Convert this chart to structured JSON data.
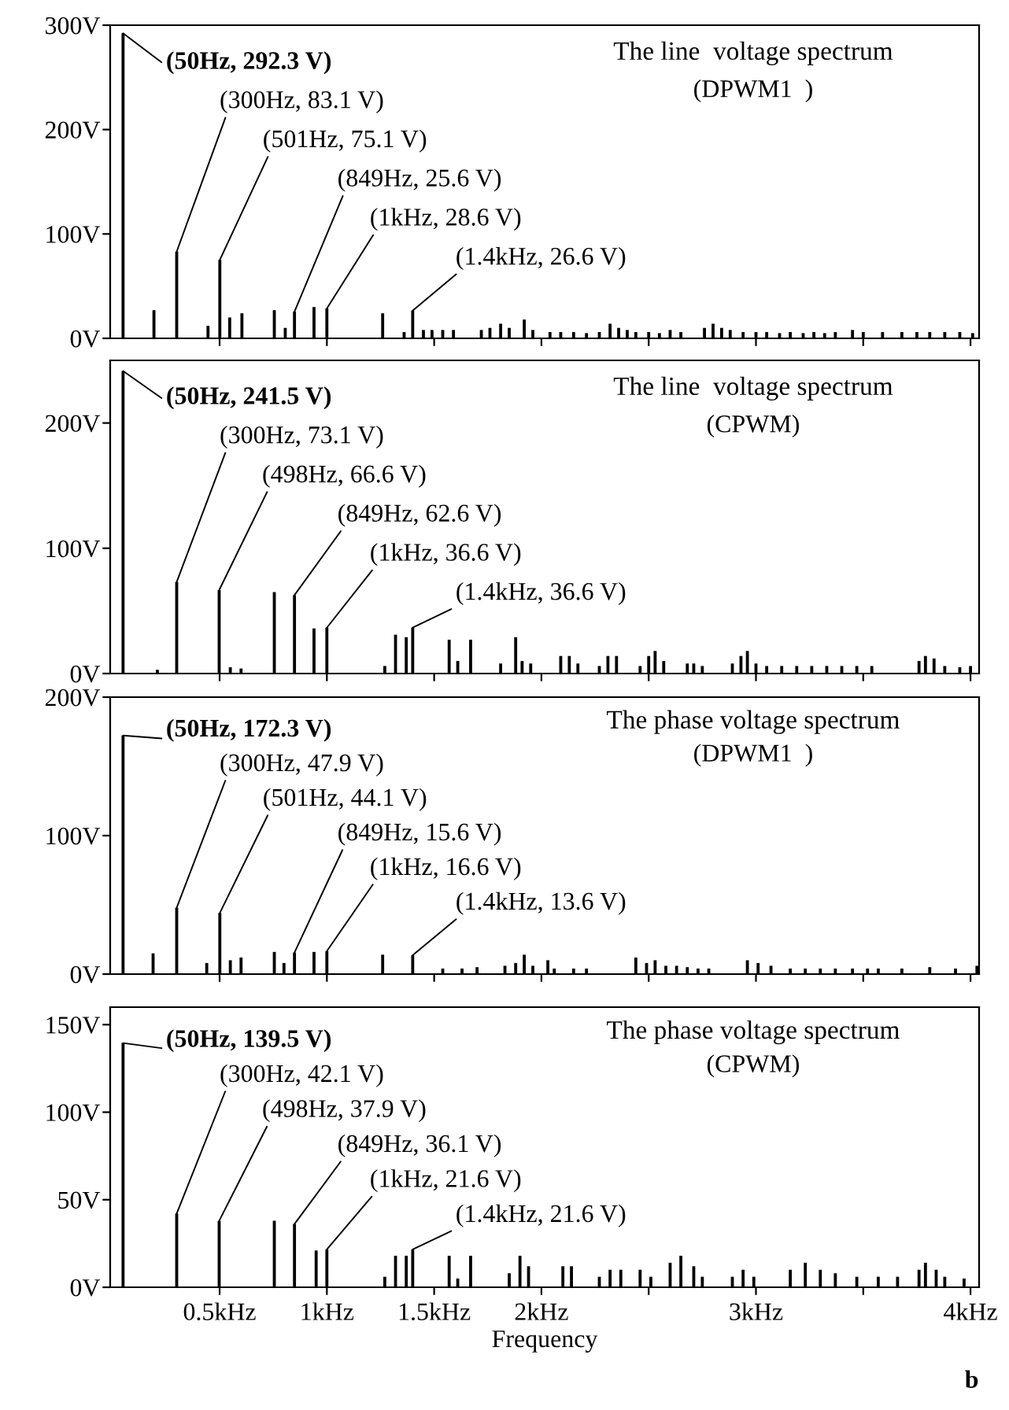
{
  "chart_data": [
    {
      "type": "bar",
      "title": "The line  voltage spectrum",
      "subtitle": "(DPWM1  )",
      "color": "#000000",
      "x": [
        0.05,
        0.194,
        0.3,
        0.446,
        0.501,
        0.547,
        0.604,
        0.755,
        0.806,
        0.849,
        0.94,
        1.0,
        1.26,
        1.36,
        1.4,
        1.45,
        1.49,
        1.54,
        1.59,
        1.72,
        1.76,
        1.81,
        1.85,
        1.92,
        1.96,
        2.04,
        2.09,
        2.15,
        2.21,
        2.27,
        2.32,
        2.36,
        2.4,
        2.44,
        2.5,
        2.55,
        2.6,
        2.65,
        2.76,
        2.8,
        2.84,
        2.88,
        2.94,
        3.0,
        3.05,
        3.11,
        3.16,
        3.22,
        3.27,
        3.32,
        3.37,
        3.45,
        3.5,
        3.59,
        3.68,
        3.75,
        3.81,
        3.88,
        3.95,
        4.01
      ],
      "values": [
        292.3,
        27,
        83.1,
        12,
        75.1,
        20,
        24,
        27,
        10,
        25.6,
        30,
        28.6,
        24,
        6,
        26.6,
        8,
        8,
        8,
        8,
        8,
        10,
        14,
        10,
        18,
        8,
        6,
        6,
        6,
        5,
        6,
        14,
        10,
        8,
        6,
        6,
        5,
        8,
        6,
        10,
        14,
        10,
        8,
        6,
        6,
        6,
        5,
        6,
        5,
        6,
        5,
        6,
        8,
        6,
        6,
        6,
        6,
        6,
        6,
        6,
        5
      ],
      "xlim": [
        -0.01,
        4.04
      ],
      "xticks": [
        {
          "value": 0.5,
          "label": null
        },
        {
          "value": 1,
          "label": null
        },
        {
          "value": 1.5,
          "label": null
        },
        {
          "value": 2,
          "label": null
        },
        {
          "value": 2.5,
          "label": null
        },
        {
          "value": 3,
          "label": null
        },
        {
          "value": 3.5,
          "label": null
        },
        {
          "value": 4,
          "label": null
        }
      ],
      "ylim": [
        0,
        300
      ],
      "yticks": [
        {
          "value": 0,
          "label": "0V"
        },
        {
          "value": 100,
          "label": "100V"
        },
        {
          "value": 200,
          "label": "200V"
        },
        {
          "value": 300,
          "label": "300V"
        }
      ],
      "tick_labels": "y",
      "annotations": [
        {
          "text": "(50Hz, 292.3 V)",
          "x": 0.05,
          "y": 292.3
        },
        {
          "text": "(300Hz, 83.1 V)",
          "x": 0.3,
          "y": 83.1
        },
        {
          "text": "(501Hz, 75.1 V)",
          "x": 0.501,
          "y": 75.1
        },
        {
          "text": "(849Hz, 25.6 V)",
          "x": 0.849,
          "y": 25.6
        },
        {
          "text": "(1kHz, 28.6 V)",
          "x": 1.0,
          "y": 28.6
        },
        {
          "text": "(1.4kHz, 26.6 V)",
          "x": 1.4,
          "y": 26.6
        }
      ]
    },
    {
      "type": "bar",
      "title": "The line  voltage spectrum",
      "subtitle": "(CPWM)",
      "color": "#000000",
      "x": [
        0.05,
        0.21,
        0.3,
        0.498,
        0.55,
        0.6,
        0.755,
        0.849,
        0.94,
        1.0,
        1.27,
        1.32,
        1.37,
        1.4,
        1.57,
        1.61,
        1.67,
        1.81,
        1.88,
        1.91,
        1.95,
        2.09,
        2.13,
        2.17,
        2.27,
        2.31,
        2.35,
        2.46,
        2.5,
        2.53,
        2.57,
        2.68,
        2.71,
        2.75,
        2.89,
        2.93,
        2.96,
        3.0,
        3.05,
        3.12,
        3.19,
        3.26,
        3.33,
        3.4,
        3.47,
        3.54,
        3.76,
        3.79,
        3.83,
        3.88,
        3.95,
        4.0
      ],
      "values": [
        241.5,
        3,
        73.1,
        66.6,
        5,
        4,
        65,
        62.6,
        36,
        36.6,
        6,
        31,
        29,
        36.6,
        27,
        10,
        27,
        8,
        29,
        10,
        8,
        14,
        14,
        8,
        6,
        14,
        14,
        6,
        14,
        18,
        10,
        8,
        8,
        6,
        8,
        14,
        18,
        8,
        6,
        6,
        6,
        6,
        6,
        6,
        6,
        6,
        10,
        14,
        12,
        6,
        5,
        6
      ],
      "xlim": [
        -0.01,
        4.04
      ],
      "xticks": [
        {
          "value": 0.5,
          "label": null
        },
        {
          "value": 1,
          "label": null
        },
        {
          "value": 1.5,
          "label": null
        },
        {
          "value": 2,
          "label": null
        },
        {
          "value": 2.5,
          "label": null
        },
        {
          "value": 3,
          "label": null
        },
        {
          "value": 3.5,
          "label": null
        },
        {
          "value": 4,
          "label": null
        }
      ],
      "ylim": [
        0,
        250
      ],
      "yticks": [
        {
          "value": 0,
          "label": "0V"
        },
        {
          "value": 100,
          "label": "100V"
        },
        {
          "value": 200,
          "label": "200V"
        }
      ],
      "tick_labels": "y",
      "annotations": [
        {
          "text": "(50Hz, 241.5 V)",
          "x": 0.05,
          "y": 241.5
        },
        {
          "text": "(300Hz, 73.1 V)",
          "x": 0.3,
          "y": 73.1
        },
        {
          "text": "(498Hz, 66.6 V)",
          "x": 0.498,
          "y": 66.6
        },
        {
          "text": "(849Hz, 62.6 V)",
          "x": 0.849,
          "y": 62.6
        },
        {
          "text": "(1kHz, 36.6 V)",
          "x": 1.0,
          "y": 36.6
        },
        {
          "text": "(1.4kHz, 36.6 V)",
          "x": 1.4,
          "y": 36.6
        }
      ]
    },
    {
      "type": "bar",
      "title": "The phase voltage spectrum",
      "subtitle": "(DPWM1  )",
      "color": "#000000",
      "x": [
        0.05,
        0.19,
        0.3,
        0.44,
        0.501,
        0.55,
        0.6,
        0.755,
        0.8,
        0.849,
        0.94,
        1.0,
        1.26,
        1.4,
        1.54,
        1.63,
        1.7,
        1.83,
        1.88,
        1.92,
        1.96,
        2.03,
        2.06,
        2.15,
        2.21,
        2.44,
        2.49,
        2.53,
        2.58,
        2.63,
        2.68,
        2.73,
        2.78,
        2.96,
        3.01,
        3.07,
        3.16,
        3.23,
        3.3,
        3.37,
        3.45,
        3.52,
        3.57,
        3.68,
        3.81,
        3.93,
        4.03
      ],
      "values": [
        172.3,
        15,
        47.9,
        8,
        44.1,
        10,
        12,
        16,
        8,
        15.6,
        16,
        16.6,
        14,
        13.6,
        4,
        4,
        5,
        6,
        8,
        14,
        6,
        10,
        4,
        4,
        4,
        12,
        8,
        10,
        6,
        6,
        5,
        4,
        4,
        10,
        8,
        6,
        4,
        4,
        4,
        4,
        4,
        4,
        4,
        4,
        5,
        4,
        6
      ],
      "xlim": [
        -0.01,
        4.04
      ],
      "xticks": [
        {
          "value": 0.5,
          "label": null
        },
        {
          "value": 1,
          "label": null
        },
        {
          "value": 1.5,
          "label": null
        },
        {
          "value": 2,
          "label": null
        },
        {
          "value": 2.5,
          "label": null
        },
        {
          "value": 3,
          "label": null
        },
        {
          "value": 3.5,
          "label": null
        },
        {
          "value": 4,
          "label": null
        }
      ],
      "ylim": [
        0,
        200
      ],
      "yticks": [
        {
          "value": 0,
          "label": "0V"
        },
        {
          "value": 100,
          "label": "100V"
        },
        {
          "value": 200,
          "label": "200V"
        }
      ],
      "tick_labels": "y",
      "annotations": [
        {
          "text": "(50Hz, 172.3 V)",
          "x": 0.05,
          "y": 172.3
        },
        {
          "text": "(300Hz, 47.9 V)",
          "x": 0.3,
          "y": 47.9
        },
        {
          "text": "(501Hz, 44.1 V)",
          "x": 0.501,
          "y": 44.1
        },
        {
          "text": "(849Hz, 15.6 V)",
          "x": 0.849,
          "y": 15.6
        },
        {
          "text": "(1kHz, 16.6 V)",
          "x": 1.0,
          "y": 16.6
        },
        {
          "text": "(1.4kHz, 13.6 V)",
          "x": 1.4,
          "y": 13.6
        }
      ]
    },
    {
      "type": "bar",
      "title": "The phase voltage spectrum",
      "subtitle": "(CPWM)",
      "color": "#000000",
      "xlabel": "Frequency",
      "x": [
        0.05,
        0.3,
        0.498,
        0.755,
        0.849,
        0.95,
        1.0,
        1.27,
        1.32,
        1.37,
        1.4,
        1.57,
        1.61,
        1.67,
        1.85,
        1.9,
        1.94,
        2.1,
        2.14,
        2.27,
        2.32,
        2.37,
        2.46,
        2.51,
        2.6,
        2.65,
        2.71,
        2.75,
        2.89,
        2.94,
        2.99,
        3.16,
        3.23,
        3.3,
        3.37,
        3.47,
        3.57,
        3.66,
        3.76,
        3.79,
        3.84,
        3.88,
        3.97
      ],
      "values": [
        139.5,
        42.1,
        37.9,
        38,
        36.1,
        21,
        21.6,
        6,
        18,
        18,
        21.6,
        18,
        5,
        18,
        8,
        18,
        12,
        12,
        12,
        6,
        10,
        10,
        10,
        6,
        14,
        18,
        12,
        6,
        6,
        10,
        6,
        10,
        14,
        10,
        8,
        6,
        6,
        6,
        10,
        14,
        10,
        6,
        5
      ],
      "xlim": [
        -0.01,
        4.04
      ],
      "xticks": [
        {
          "value": 0.5,
          "label": "0.5kHz"
        },
        {
          "value": 1,
          "label": "1kHz"
        },
        {
          "value": 1.5,
          "label": "1.5kHz"
        },
        {
          "value": 2,
          "label": "2kHz"
        },
        {
          "value": 2.5,
          "label": null
        },
        {
          "value": 3,
          "label": "3kHz"
        },
        {
          "value": 3.5,
          "label": null
        },
        {
          "value": 4,
          "label": "4kHz"
        }
      ],
      "ylim": [
        0,
        160
      ],
      "yticks": [
        {
          "value": 0,
          "label": "0V"
        },
        {
          "value": 50,
          "label": "50V"
        },
        {
          "value": 100,
          "label": "100V"
        },
        {
          "value": 150,
          "label": "150V"
        }
      ],
      "annotations": [
        {
          "text": "(50Hz, 139.5 V)",
          "x": 0.05,
          "y": 139.5
        },
        {
          "text": "(300Hz, 42.1 V)",
          "x": 0.3,
          "y": 42.1
        },
        {
          "text": "(498Hz, 37.9 V)",
          "x": 0.498,
          "y": 37.9
        },
        {
          "text": "(849Hz, 36.1 V)",
          "x": 0.849,
          "y": 36.1
        },
        {
          "text": "(1kHz, 21.6 V)",
          "x": 1.0,
          "y": 21.6
        },
        {
          "text": "(1.4kHz, 21.6 V)",
          "x": 1.4,
          "y": 21.6
        },
        "b"
      ]
    }
  ]
}
